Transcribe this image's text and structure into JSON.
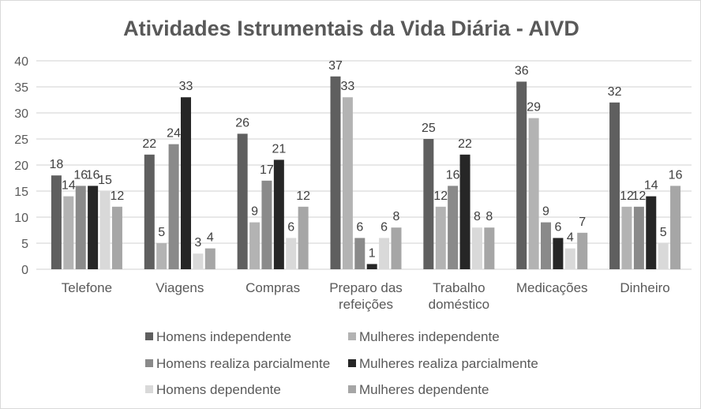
{
  "chart_data": {
    "type": "bar",
    "title": "Atividades Istrumentais da Vida Diária - AIVD",
    "xlabel": "",
    "ylabel": "",
    "ylim": [
      0,
      40
    ],
    "yticks": [
      0,
      5,
      10,
      15,
      20,
      25,
      30,
      35,
      40
    ],
    "grid": true,
    "legend_position": "bottom",
    "categories": [
      [
        "Telefone"
      ],
      [
        "Viagens"
      ],
      [
        "Compras"
      ],
      [
        "Preparo das",
        "refeições"
      ],
      [
        "Trabalho",
        "doméstico"
      ],
      [
        "Medicações"
      ],
      [
        "Dinheiro"
      ]
    ],
    "series": [
      {
        "name": "Homens independente",
        "color": "#5f5f5f",
        "values": [
          18,
          22,
          26,
          37,
          25,
          36,
          32
        ]
      },
      {
        "name": "Mulheres independente",
        "color": "#b3b3b3",
        "values": [
          14,
          5,
          9,
          33,
          12,
          29,
          12
        ]
      },
      {
        "name": "Homens realiza parcialmente",
        "color": "#8a8a8a",
        "values": [
          16,
          24,
          17,
          6,
          16,
          9,
          12
        ]
      },
      {
        "name": "Mulheres realiza parcialmente",
        "color": "#262626",
        "values": [
          16,
          33,
          21,
          1,
          22,
          6,
          14
        ]
      },
      {
        "name": "Homens dependente",
        "color": "#d9d9d9",
        "values": [
          15,
          3,
          6,
          6,
          8,
          4,
          5
        ]
      },
      {
        "name": "Mulheres dependente",
        "color": "#a6a6a6",
        "values": [
          12,
          4,
          12,
          8,
          8,
          7,
          16
        ]
      }
    ]
  }
}
